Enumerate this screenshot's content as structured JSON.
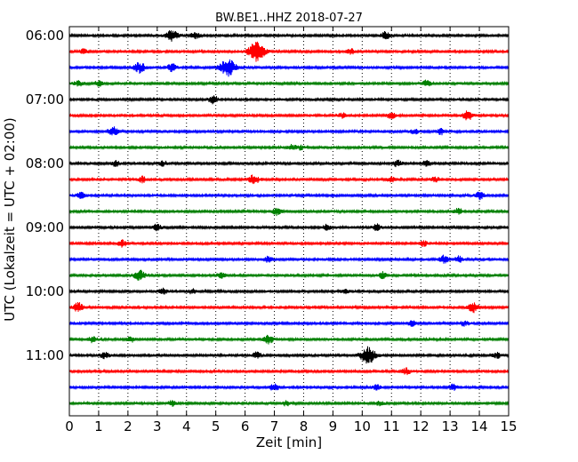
{
  "chart_data": {
    "type": "line",
    "title": "BW.BE1..HHZ 2018-07-27",
    "xlabel": "Zeit  [min]",
    "ylabel": "UTC (Lokalzeit = UTC + 02:00)",
    "xlim": [
      0,
      15
    ],
    "x_ticks": [
      0,
      1,
      2,
      3,
      4,
      5,
      6,
      7,
      8,
      9,
      10,
      11,
      12,
      13,
      14,
      15
    ],
    "y_tick_labels": [
      "06:00",
      "07:00",
      "08:00",
      "09:00",
      "10:00",
      "11:00"
    ],
    "grid": "vertical dotted",
    "trace_colors": [
      "#000000",
      "#ff0000",
      "#0000ff",
      "#008000"
    ],
    "series": [
      {
        "start": "06:00",
        "events": [
          {
            "min": 3.5,
            "amp": 0.55
          },
          {
            "min": 4.3,
            "amp": 0.3
          },
          {
            "min": 10.8,
            "amp": 0.35
          }
        ]
      },
      {
        "start": "06:15",
        "events": [
          {
            "min": 0.5,
            "amp": 0.25
          },
          {
            "min": 6.4,
            "amp": 1.0
          },
          {
            "min": 9.6,
            "amp": 0.25
          }
        ]
      },
      {
        "start": "06:30",
        "events": [
          {
            "min": 2.4,
            "amp": 0.5
          },
          {
            "min": 3.5,
            "amp": 0.4
          },
          {
            "min": 5.4,
            "amp": 0.9
          }
        ]
      },
      {
        "start": "06:45",
        "events": [
          {
            "min": 0.3,
            "amp": 0.25
          },
          {
            "min": 1.0,
            "amp": 0.25
          },
          {
            "min": 12.2,
            "amp": 0.3
          }
        ]
      },
      {
        "start": "07:00",
        "events": [
          {
            "min": 4.9,
            "amp": 0.4
          }
        ]
      },
      {
        "start": "07:15",
        "events": [
          {
            "min": 9.3,
            "amp": 0.25
          },
          {
            "min": 11.0,
            "amp": 0.3
          },
          {
            "min": 13.6,
            "amp": 0.45
          }
        ]
      },
      {
        "start": "07:30",
        "events": [
          {
            "min": 1.5,
            "amp": 0.45
          },
          {
            "min": 11.8,
            "amp": 0.25
          },
          {
            "min": 12.7,
            "amp": 0.3
          }
        ]
      },
      {
        "start": "07:45",
        "events": [
          {
            "min": 7.6,
            "amp": 0.25
          },
          {
            "min": 7.9,
            "amp": 0.2
          }
        ]
      },
      {
        "start": "08:00",
        "events": [
          {
            "min": 1.6,
            "amp": 0.25
          },
          {
            "min": 3.2,
            "amp": 0.25
          },
          {
            "min": 11.2,
            "amp": 0.3
          },
          {
            "min": 12.2,
            "amp": 0.3
          }
        ]
      },
      {
        "start": "08:15",
        "events": [
          {
            "min": 2.5,
            "amp": 0.3
          },
          {
            "min": 6.3,
            "amp": 0.45
          },
          {
            "min": 11.0,
            "amp": 0.25
          },
          {
            "min": 12.5,
            "amp": 0.25
          }
        ]
      },
      {
        "start": "08:30",
        "events": [
          {
            "min": 0.4,
            "amp": 0.3
          },
          {
            "min": 14.0,
            "amp": 0.35
          }
        ]
      },
      {
        "start": "08:45",
        "events": [
          {
            "min": 7.1,
            "amp": 0.35
          },
          {
            "min": 13.3,
            "amp": 0.3
          }
        ]
      },
      {
        "start": "09:00",
        "events": [
          {
            "min": 3.0,
            "amp": 0.3
          },
          {
            "min": 8.8,
            "amp": 0.25
          },
          {
            "min": 10.5,
            "amp": 0.3
          }
        ]
      },
      {
        "start": "09:15",
        "events": [
          {
            "min": 1.8,
            "amp": 0.3
          },
          {
            "min": 12.1,
            "amp": 0.25
          }
        ]
      },
      {
        "start": "09:30",
        "events": [
          {
            "min": 6.8,
            "amp": 0.3
          },
          {
            "min": 12.8,
            "amp": 0.4
          },
          {
            "min": 13.3,
            "amp": 0.3
          }
        ]
      },
      {
        "start": "09:45",
        "events": [
          {
            "min": 2.4,
            "amp": 0.5
          },
          {
            "min": 5.2,
            "amp": 0.3
          },
          {
            "min": 10.7,
            "amp": 0.3
          }
        ]
      },
      {
        "start": "10:00",
        "events": [
          {
            "min": 3.2,
            "amp": 0.25
          },
          {
            "min": 4.2,
            "amp": 0.25
          },
          {
            "min": 9.4,
            "amp": 0.2
          }
        ]
      },
      {
        "start": "10:15",
        "events": [
          {
            "min": 0.3,
            "amp": 0.45
          },
          {
            "min": 13.8,
            "amp": 0.45
          }
        ]
      },
      {
        "start": "10:30",
        "events": [
          {
            "min": 11.7,
            "amp": 0.25
          },
          {
            "min": 13.5,
            "amp": 0.25
          }
        ]
      },
      {
        "start": "10:45",
        "events": [
          {
            "min": 0.8,
            "amp": 0.3
          },
          {
            "min": 2.1,
            "amp": 0.25
          },
          {
            "min": 6.8,
            "amp": 0.4
          }
        ]
      },
      {
        "start": "11:00",
        "events": [
          {
            "min": 1.2,
            "amp": 0.3
          },
          {
            "min": 6.4,
            "amp": 0.3
          },
          {
            "min": 10.2,
            "amp": 0.85
          },
          {
            "min": 14.6,
            "amp": 0.25
          }
        ]
      },
      {
        "start": "11:15",
        "events": [
          {
            "min": 11.5,
            "amp": 0.3
          }
        ]
      },
      {
        "start": "11:30",
        "events": [
          {
            "min": 7.0,
            "amp": 0.35
          },
          {
            "min": 10.5,
            "amp": 0.25
          },
          {
            "min": 13.1,
            "amp": 0.3
          }
        ]
      },
      {
        "start": "11:45",
        "events": [
          {
            "min": 3.5,
            "amp": 0.25
          },
          {
            "min": 7.4,
            "amp": 0.2
          },
          {
            "min": 10.6,
            "amp": 0.2
          }
        ]
      }
    ]
  }
}
